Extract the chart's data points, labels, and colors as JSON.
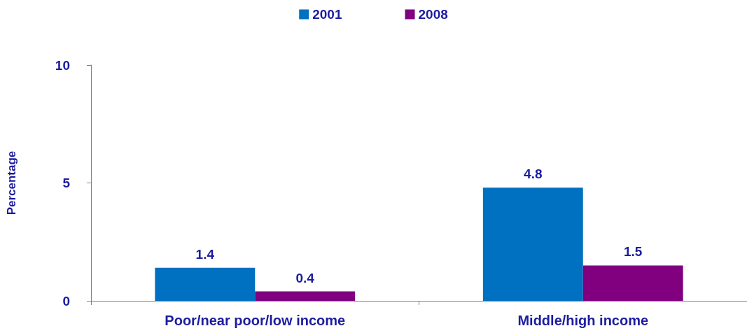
{
  "chart_data": {
    "type": "bar",
    "ylabel": "Percentage",
    "categories": [
      "Poor/near poor/low income",
      "Middle/high income"
    ],
    "series": [
      {
        "name": "2001",
        "color": "#0070c0",
        "values": [
          1.4,
          4.8
        ]
      },
      {
        "name": "2008",
        "color": "#800080",
        "values": [
          0.4,
          1.5
        ]
      }
    ],
    "ylim": [
      0,
      10
    ],
    "yticks": [
      0,
      5,
      10
    ],
    "grid": false,
    "legend": "top",
    "data_labels": true
  }
}
